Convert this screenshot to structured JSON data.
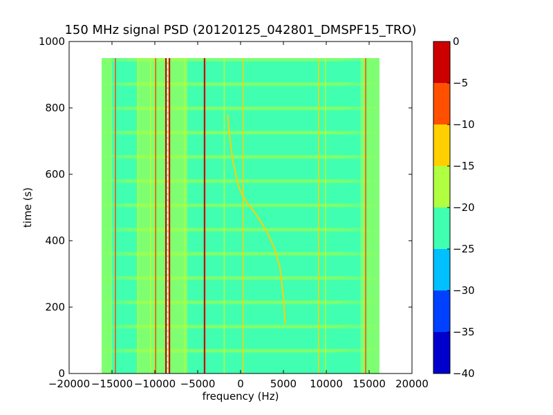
{
  "chart_data": {
    "type": "heatmap",
    "title": "150 MHz signal PSD (20120125_042801_DMSPF15_TRO)",
    "xlabel": "frequency (Hz)",
    "ylabel": "time (s)",
    "xlim": [
      -20000,
      20000
    ],
    "ylim": [
      0,
      1000
    ],
    "x_ticks": [
      -20000,
      -15000,
      -10000,
      -5000,
      0,
      5000,
      10000,
      15000,
      20000
    ],
    "x_tick_labels": [
      "−20000",
      "−15000",
      "−10000",
      "−5000",
      "0",
      "5000",
      "10000",
      "15000",
      "20000"
    ],
    "y_ticks": [
      0,
      200,
      400,
      600,
      800,
      1000
    ],
    "y_tick_labels": [
      "0",
      "200",
      "400",
      "600",
      "800",
      "1000"
    ],
    "data_extent": {
      "freq_min_hz": -16200,
      "freq_max_hz": 16200,
      "time_min_s": 0,
      "time_max_s": 950
    },
    "background_level_db": -22.5,
    "colorbar": {
      "levels": [
        -40,
        -35,
        -30,
        -25,
        -20,
        -15,
        -10,
        -5,
        0
      ],
      "tick_labels": [
        "−40",
        "−35",
        "−30",
        "−25",
        "−20",
        "−15",
        "−10",
        "−5",
        "0"
      ],
      "colors": [
        "#0000cd",
        "#0040ff",
        "#00c0ff",
        "#40ffb0",
        "#b0ff40",
        "#ffd000",
        "#ff5000",
        "#cd0000"
      ]
    },
    "edge_bands": [
      {
        "freq_from_hz": -16200,
        "freq_to_hz": -15000,
        "level_db": -17.5
      },
      {
        "freq_from_hz": -12000,
        "freq_to_hz": -6200,
        "level_db": -17.5
      },
      {
        "freq_from_hz": 14000,
        "freq_to_hz": 16200,
        "level_db": -17.5
      }
    ],
    "constant_lines": [
      {
        "freq_hz": -14600,
        "level_db": -7.5
      },
      {
        "freq_hz": -12000,
        "level_db": -17.5
      },
      {
        "freq_hz": -10500,
        "level_db": -17.5
      },
      {
        "freq_hz": -9900,
        "level_db": -7.5
      },
      {
        "freq_hz": -8700,
        "level_db": -2.5
      },
      {
        "freq_hz": -8300,
        "level_db": -2.5
      },
      {
        "freq_hz": -6500,
        "level_db": -17.5
      },
      {
        "freq_hz": -4200,
        "level_db": -2.5
      },
      {
        "freq_hz": -1900,
        "level_db": -17.5
      },
      {
        "freq_hz": 300,
        "level_db": -12.5
      },
      {
        "freq_hz": 9100,
        "level_db": -12.5
      },
      {
        "freq_hz": 9900,
        "level_db": -17.5
      },
      {
        "freq_hz": 14600,
        "level_db": -7.5
      }
    ],
    "series": [
      {
        "level_db": -12.5,
        "points": [
          {
            "freq_hz": 5200,
            "time_s": 150
          },
          {
            "freq_hz": 5000,
            "time_s": 230
          },
          {
            "freq_hz": 4600,
            "time_s": 320
          },
          {
            "freq_hz": 3900,
            "time_s": 380
          },
          {
            "freq_hz": 3000,
            "time_s": 430
          },
          {
            "freq_hz": 1800,
            "time_s": 480
          },
          {
            "freq_hz": 600,
            "time_s": 520
          },
          {
            "freq_hz": -200,
            "time_s": 560
          },
          {
            "freq_hz": -900,
            "time_s": 640
          },
          {
            "freq_hz": -1300,
            "time_s": 720
          },
          {
            "freq_hz": -1500,
            "time_s": 780
          }
        ]
      }
    ]
  }
}
